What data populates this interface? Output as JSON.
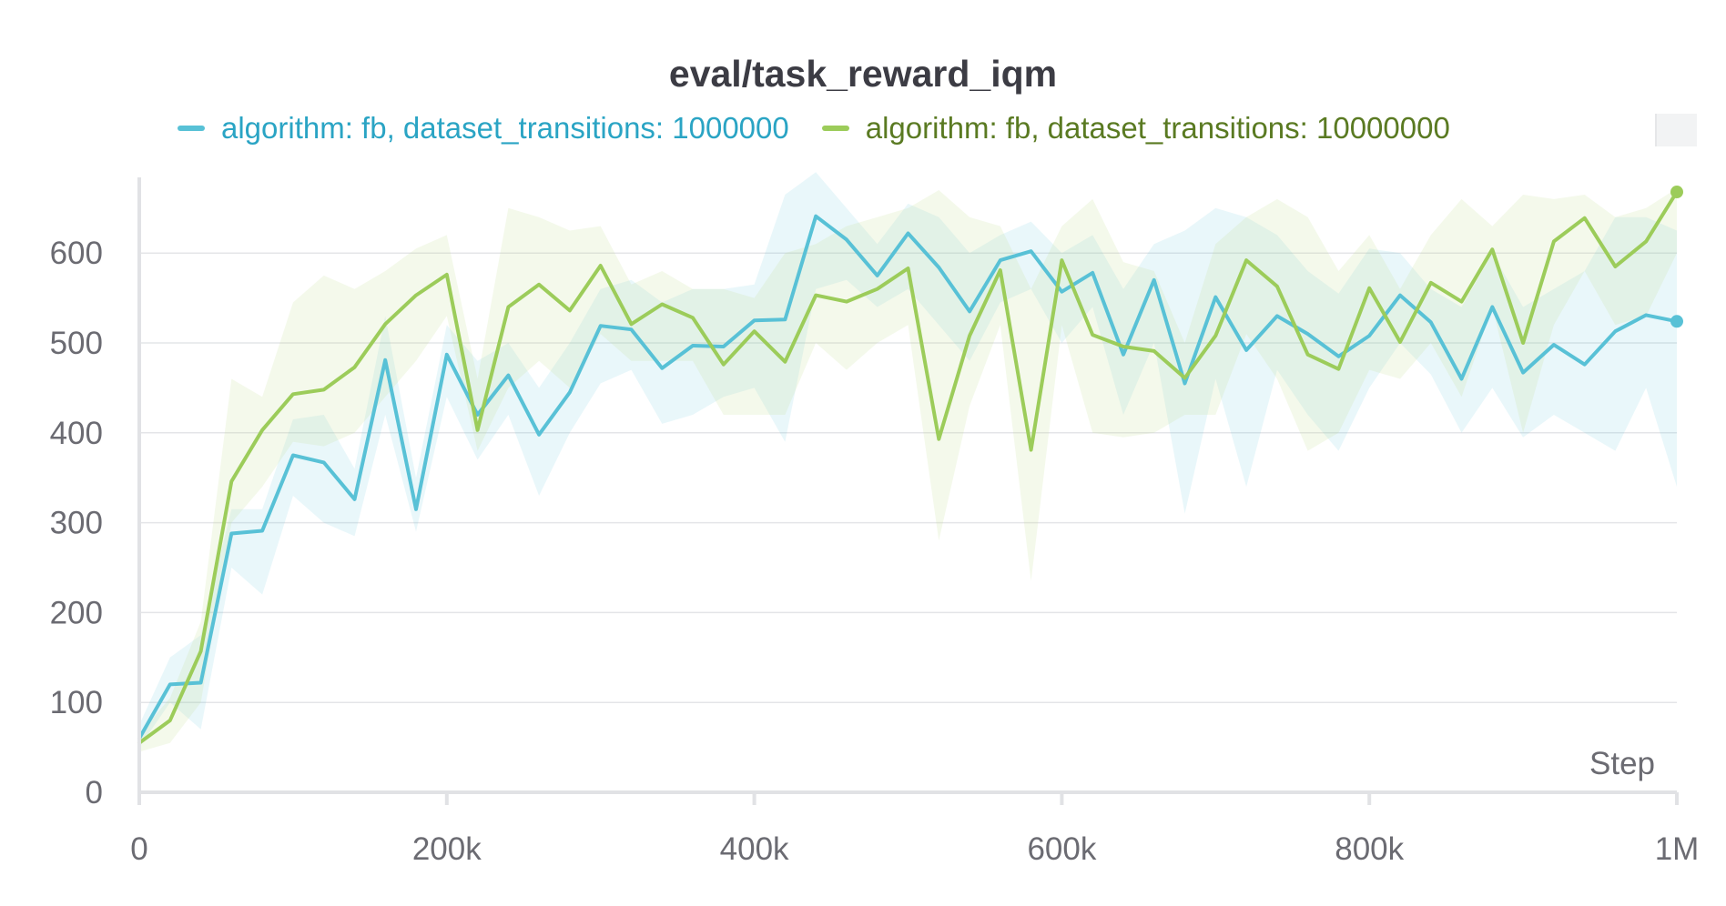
{
  "chart_data": {
    "type": "line",
    "title": "eval/task_reward_iqm",
    "xlabel": "Step",
    "ylabel": "",
    "xlim": [
      0,
      1000000
    ],
    "ylim": [
      0,
      690
    ],
    "x_ticks": [
      0,
      200000,
      400000,
      600000,
      800000,
      1000000
    ],
    "x_tick_labels": [
      "0",
      "200k",
      "400k",
      "600k",
      "800k",
      "1M"
    ],
    "y_ticks": [
      0,
      100,
      200,
      300,
      400,
      500,
      600
    ],
    "y_tick_labels": [
      "0",
      "100",
      "200",
      "300",
      "400",
      "500",
      "600"
    ],
    "grid": true,
    "legend_position": "top",
    "x": [
      0,
      20000,
      40000,
      60000,
      80000,
      100000,
      120000,
      140000,
      160000,
      180000,
      200000,
      220000,
      240000,
      260000,
      280000,
      300000,
      320000,
      340000,
      360000,
      380000,
      400000,
      420000,
      440000,
      460000,
      480000,
      500000,
      520000,
      540000,
      560000,
      580000,
      600000,
      620000,
      640000,
      660000,
      680000,
      700000,
      720000,
      740000,
      760000,
      780000,
      800000,
      820000,
      840000,
      860000,
      880000,
      900000,
      920000,
      940000,
      960000,
      980000,
      1000000
    ],
    "series": [
      {
        "name": "algorithm: fb, dataset_transitions: 1000000",
        "color": "#58c1d6",
        "band_color": "#58c1d6",
        "values": [
          60,
          120,
          122,
          288,
          291,
          375,
          367,
          326,
          481,
          315,
          487,
          420,
          464,
          398,
          445,
          519,
          515,
          472,
          497,
          496,
          525,
          526,
          641,
          615,
          575,
          622,
          584,
          535,
          592,
          602,
          557,
          578,
          487,
          570,
          455,
          551,
          492,
          530,
          510,
          485,
          508,
          553,
          523,
          460,
          540,
          467,
          498,
          476,
          513,
          531,
          524
        ],
        "upper": [
          75,
          150,
          175,
          315,
          315,
          415,
          420,
          360,
          530,
          350,
          520,
          480,
          500,
          450,
          500,
          560,
          570,
          545,
          560,
          560,
          565,
          665,
          690,
          650,
          610,
          655,
          640,
          600,
          620,
          635,
          600,
          620,
          560,
          610,
          625,
          650,
          640,
          620,
          580,
          555,
          605,
          600,
          560,
          540,
          600,
          540,
          560,
          580,
          640,
          640,
          625
        ],
        "lower": [
          50,
          100,
          70,
          250,
          220,
          330,
          300,
          285,
          420,
          290,
          440,
          370,
          420,
          330,
          400,
          455,
          470,
          410,
          420,
          440,
          450,
          390,
          560,
          570,
          540,
          560,
          520,
          480,
          545,
          560,
          500,
          540,
          420,
          500,
          310,
          460,
          340,
          470,
          420,
          380,
          450,
          500,
          465,
          400,
          450,
          395,
          420,
          400,
          380,
          450,
          340
        ]
      },
      {
        "name": "algorithm: fb, dataset_transitions: 10000000",
        "color": "#9ccc5a",
        "band_color": "#c4e08e",
        "values": [
          55,
          80,
          157,
          346,
          403,
          443,
          448,
          473,
          521,
          553,
          576,
          403,
          540,
          565,
          536,
          586,
          521,
          543,
          528,
          476,
          513,
          479,
          553,
          546,
          560,
          583,
          393,
          508,
          581,
          381,
          592,
          509,
          496,
          491,
          461,
          508,
          592,
          563,
          487,
          471,
          561,
          501,
          567,
          546,
          604,
          500,
          613,
          639,
          585,
          613,
          668
        ],
        "upper": [
          65,
          105,
          190,
          460,
          440,
          545,
          575,
          560,
          580,
          605,
          620,
          460,
          650,
          640,
          625,
          630,
          565,
          580,
          560,
          560,
          550,
          600,
          610,
          630,
          640,
          650,
          670,
          640,
          630,
          560,
          630,
          660,
          590,
          580,
          500,
          610,
          640,
          660,
          640,
          580,
          620,
          560,
          620,
          660,
          630,
          665,
          660,
          665,
          640,
          650,
          672
        ],
        "lower": [
          45,
          55,
          100,
          300,
          340,
          390,
          385,
          400,
          440,
          480,
          530,
          380,
          450,
          480,
          450,
          510,
          480,
          480,
          480,
          420,
          420,
          420,
          500,
          470,
          500,
          520,
          280,
          430,
          520,
          235,
          520,
          400,
          395,
          400,
          420,
          420,
          510,
          460,
          380,
          400,
          470,
          460,
          500,
          440,
          540,
          400,
          520,
          580,
          520,
          530,
          600
        ]
      }
    ]
  }
}
